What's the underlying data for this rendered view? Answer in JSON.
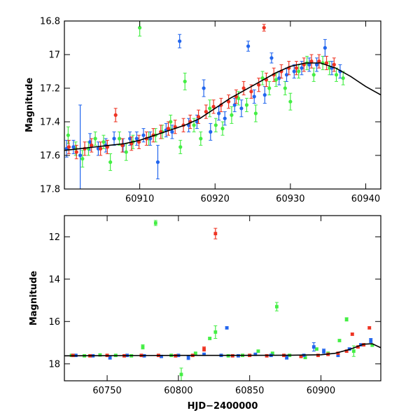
{
  "colors": {
    "green": "#44ee44",
    "blue": "#2266ee",
    "red": "#ee3322",
    "model": "#000000",
    "frame": "#000000"
  },
  "chart_data": [
    {
      "type": "scatter",
      "title": "",
      "xlabel": "",
      "ylabel": "Magnitude",
      "xlim": [
        60900,
        60942
      ],
      "ylim": [
        17.8,
        16.8
      ],
      "y_inverted": true,
      "grid": false,
      "xticks": [
        60910,
        60920,
        60930,
        60940
      ],
      "xtick_labels": [
        "60910",
        "60920",
        "60930",
        "60940"
      ],
      "yticks": [
        16.8,
        17,
        17.2,
        17.4,
        17.6,
        17.8
      ],
      "ytick_labels": [
        "16.8",
        "17",
        "17.2",
        "17.4",
        "17.6",
        "17.8"
      ],
      "model_curve": {
        "x": [
          60900,
          60902,
          60904,
          60906,
          60908,
          60910,
          60912,
          60914,
          60916,
          60918,
          60920,
          60922,
          60924,
          60926,
          60928,
          60930,
          60932,
          60934,
          60936,
          60938,
          60940,
          60942
        ],
        "y": [
          17.57,
          17.56,
          17.55,
          17.54,
          17.53,
          17.51,
          17.48,
          17.45,
          17.42,
          17.38,
          17.32,
          17.26,
          17.21,
          17.16,
          17.11,
          17.07,
          17.05,
          17.05,
          17.08,
          17.13,
          17.19,
          17.24
        ]
      },
      "series": [
        {
          "color": "green",
          "x": [
            60900.5,
            60901.5,
            60902.4,
            60903.2,
            60904.1,
            60905.2,
            60906.1,
            60907.3,
            60908.2,
            60909.1,
            60910.0,
            60911.2,
            60912.1,
            60913.0,
            60914.1,
            60915.4,
            60916.0,
            60917.2,
            60918.1,
            60919.3,
            60920.1,
            60921.0,
            60922.2,
            60923.1,
            60924.2,
            60925.4,
            60926.3,
            60927.2,
            60928.1,
            60929.3,
            60930.0,
            60931.1,
            60932.2,
            60933.1,
            60934.3,
            60935.2,
            60936.1,
            60937.0
          ],
          "y": [
            17.48,
            17.56,
            17.62,
            17.56,
            17.5,
            17.52,
            17.64,
            17.5,
            17.58,
            17.52,
            16.84,
            17.5,
            17.48,
            17.46,
            17.4,
            17.55,
            17.16,
            17.42,
            17.5,
            17.32,
            17.42,
            17.44,
            17.36,
            17.26,
            17.3,
            17.35,
            17.14,
            17.2,
            17.15,
            17.2,
            17.28,
            17.1,
            17.05,
            17.12,
            17.05,
            17.08,
            17.12,
            17.14
          ],
          "yerr": [
            0.05,
            0.04,
            0.05,
            0.04,
            0.04,
            0.04,
            0.05,
            0.04,
            0.05,
            0.04,
            0.05,
            0.04,
            0.04,
            0.04,
            0.04,
            0.04,
            0.05,
            0.04,
            0.04,
            0.05,
            0.04,
            0.04,
            0.05,
            0.04,
            0.04,
            0.05,
            0.04,
            0.04,
            0.04,
            0.04,
            0.05,
            0.04,
            0.04,
            0.04,
            0.04,
            0.04,
            0.04,
            0.04
          ]
        },
        {
          "color": "blue",
          "x": [
            60900.3,
            60901.2,
            60902.1,
            60903.4,
            60904.5,
            60905.5,
            60906.6,
            60907.8,
            60908.7,
            60909.6,
            60910.5,
            60911.4,
            60912.4,
            60913.5,
            60914.3,
            60915.3,
            60916.5,
            60917.6,
            60918.5,
            60919.4,
            60920.5,
            60921.3,
            60922.6,
            60923.5,
            60924.4,
            60925.2,
            60926.6,
            60927.5,
            60928.5,
            60929.5,
            60930.5,
            60931.5,
            60932.5,
            60933.5,
            60934.6,
            60935.5,
            60936.6
          ],
          "y": [
            17.56,
            17.55,
            17.6,
            17.52,
            17.56,
            17.54,
            17.5,
            17.54,
            17.5,
            17.5,
            17.48,
            17.5,
            17.64,
            17.45,
            17.46,
            16.92,
            17.42,
            17.4,
            17.2,
            17.46,
            17.35,
            17.38,
            17.3,
            17.32,
            16.95,
            17.25,
            17.24,
            17.02,
            17.14,
            17.12,
            17.1,
            17.08,
            17.06,
            17.06,
            16.96,
            17.08,
            17.1
          ],
          "yerr": [
            0.05,
            0.04,
            0.3,
            0.05,
            0.04,
            0.04,
            0.04,
            0.04,
            0.04,
            0.04,
            0.04,
            0.04,
            0.1,
            0.04,
            0.04,
            0.04,
            0.04,
            0.04,
            0.05,
            0.05,
            0.04,
            0.04,
            0.04,
            0.05,
            0.03,
            0.04,
            0.05,
            0.03,
            0.04,
            0.04,
            0.04,
            0.04,
            0.04,
            0.04,
            0.05,
            0.04,
            0.04
          ]
        },
        {
          "color": "red",
          "x": [
            60900.6,
            60901.6,
            60902.7,
            60903.6,
            60904.8,
            60905.7,
            60906.8,
            60907.7,
            60908.9,
            60909.9,
            60910.9,
            60911.8,
            60912.8,
            60913.8,
            60914.7,
            60915.8,
            60916.7,
            60917.8,
            60918.8,
            60919.8,
            60920.8,
            60921.8,
            60922.8,
            60923.8,
            60924.8,
            60925.8,
            60926.5,
            60926.8,
            60927.8,
            60928.8,
            60929.8,
            60930.8,
            60931.8,
            60932.8,
            60933.8,
            60934.8,
            60935.8
          ],
          "y": [
            17.55,
            17.58,
            17.56,
            17.54,
            17.56,
            17.55,
            17.36,
            17.54,
            17.53,
            17.52,
            17.5,
            17.48,
            17.46,
            17.44,
            17.43,
            17.42,
            17.4,
            17.37,
            17.34,
            17.31,
            17.3,
            17.28,
            17.25,
            17.2,
            17.22,
            17.18,
            16.84,
            17.15,
            17.12,
            17.1,
            17.08,
            17.08,
            17.06,
            17.04,
            17.04,
            17.05,
            17.06
          ],
          "yerr": [
            0.04,
            0.04,
            0.04,
            0.04,
            0.04,
            0.04,
            0.04,
            0.04,
            0.04,
            0.04,
            0.04,
            0.04,
            0.04,
            0.04,
            0.04,
            0.04,
            0.04,
            0.04,
            0.04,
            0.04,
            0.04,
            0.04,
            0.04,
            0.04,
            0.04,
            0.04,
            0.02,
            0.04,
            0.04,
            0.04,
            0.04,
            0.04,
            0.04,
            0.04,
            0.04,
            0.04,
            0.04
          ]
        }
      ]
    },
    {
      "type": "scatter",
      "title": "",
      "xlabel": "HJD−2400000",
      "ylabel": "Magnitude",
      "xlim": [
        60720,
        60942
      ],
      "ylim": [
        18.8,
        11
      ],
      "y_inverted": true,
      "grid": false,
      "xticks": [
        60750,
        60800,
        60850,
        60900
      ],
      "xtick_labels": [
        "60750",
        "60800",
        "60850",
        "60900"
      ],
      "yticks": [
        12,
        14,
        16,
        18
      ],
      "ytick_labels": [
        "12",
        "14",
        "16",
        "18"
      ],
      "model_curve": {
        "x": [
          60720,
          60760,
          60800,
          60840,
          60880,
          60900,
          60910,
          60920,
          60930,
          60936,
          60942
        ],
        "y": [
          17.62,
          17.61,
          17.6,
          17.6,
          17.59,
          17.57,
          17.5,
          17.32,
          17.07,
          17.05,
          17.24
        ]
      },
      "series": [
        {
          "color": "green",
          "x": [
            60725,
            60734,
            60745,
            60756,
            60767,
            60775,
            60784,
            60795,
            60802,
            60812,
            60822,
            60826,
            60835,
            60845,
            60856,
            60866,
            60869,
            60878,
            60889,
            60897,
            60905,
            60913,
            60918,
            60923,
            60930,
            60936
          ],
          "y": [
            17.6,
            17.62,
            17.58,
            17.6,
            17.62,
            17.2,
            11.35,
            17.6,
            18.5,
            17.5,
            16.8,
            16.5,
            17.62,
            17.6,
            17.4,
            17.5,
            15.3,
            17.6,
            17.7,
            17.3,
            17.5,
            16.9,
            15.9,
            17.4,
            17.1,
            17.12
          ],
          "yerr": [
            0.05,
            0.05,
            0.05,
            0.05,
            0.05,
            0.1,
            0.12,
            0.05,
            0.3,
            0.05,
            0.05,
            0.3,
            0.05,
            0.05,
            0.05,
            0.05,
            0.2,
            0.05,
            0.05,
            0.05,
            0.05,
            0.05,
            0.08,
            0.25,
            0.05,
            0.05
          ]
        },
        {
          "color": "blue",
          "x": [
            60728,
            60740,
            60752,
            60764,
            60776,
            60788,
            60800,
            60807,
            60818,
            60830,
            60834,
            60842,
            60854,
            60865,
            60876,
            60888,
            60895,
            60902,
            60912,
            60920,
            60928,
            60935
          ],
          "y": [
            17.6,
            17.62,
            17.7,
            17.6,
            17.62,
            17.65,
            17.6,
            17.7,
            17.55,
            17.6,
            16.3,
            17.62,
            17.55,
            17.6,
            17.7,
            17.6,
            17.2,
            17.4,
            17.6,
            17.3,
            17.1,
            16.9
          ],
          "yerr": [
            0.05,
            0.05,
            0.08,
            0.05,
            0.05,
            0.05,
            0.05,
            0.1,
            0.05,
            0.05,
            0.05,
            0.05,
            0.05,
            0.05,
            0.08,
            0.05,
            0.2,
            0.1,
            0.05,
            0.05,
            0.05,
            0.1
          ]
        },
        {
          "color": "red",
          "x": [
            60726,
            60738,
            60750,
            60762,
            60774,
            60786,
            60798,
            60810,
            60818,
            60826,
            60838,
            60850,
            60862,
            60874,
            60886,
            60898,
            60905,
            60912,
            60918,
            60922,
            60926,
            60930,
            60934
          ],
          "y": [
            17.6,
            17.62,
            17.6,
            17.62,
            17.6,
            17.6,
            17.62,
            17.6,
            17.3,
            11.85,
            17.62,
            17.6,
            17.62,
            17.6,
            17.65,
            17.6,
            17.55,
            17.5,
            17.4,
            16.6,
            17.2,
            17.1,
            16.3
          ],
          "yerr": [
            0.05,
            0.05,
            0.05,
            0.05,
            0.05,
            0.05,
            0.05,
            0.05,
            0.1,
            0.25,
            0.05,
            0.05,
            0.05,
            0.05,
            0.05,
            0.05,
            0.05,
            0.05,
            0.05,
            0.05,
            0.05,
            0.05,
            0.05
          ]
        }
      ]
    }
  ]
}
